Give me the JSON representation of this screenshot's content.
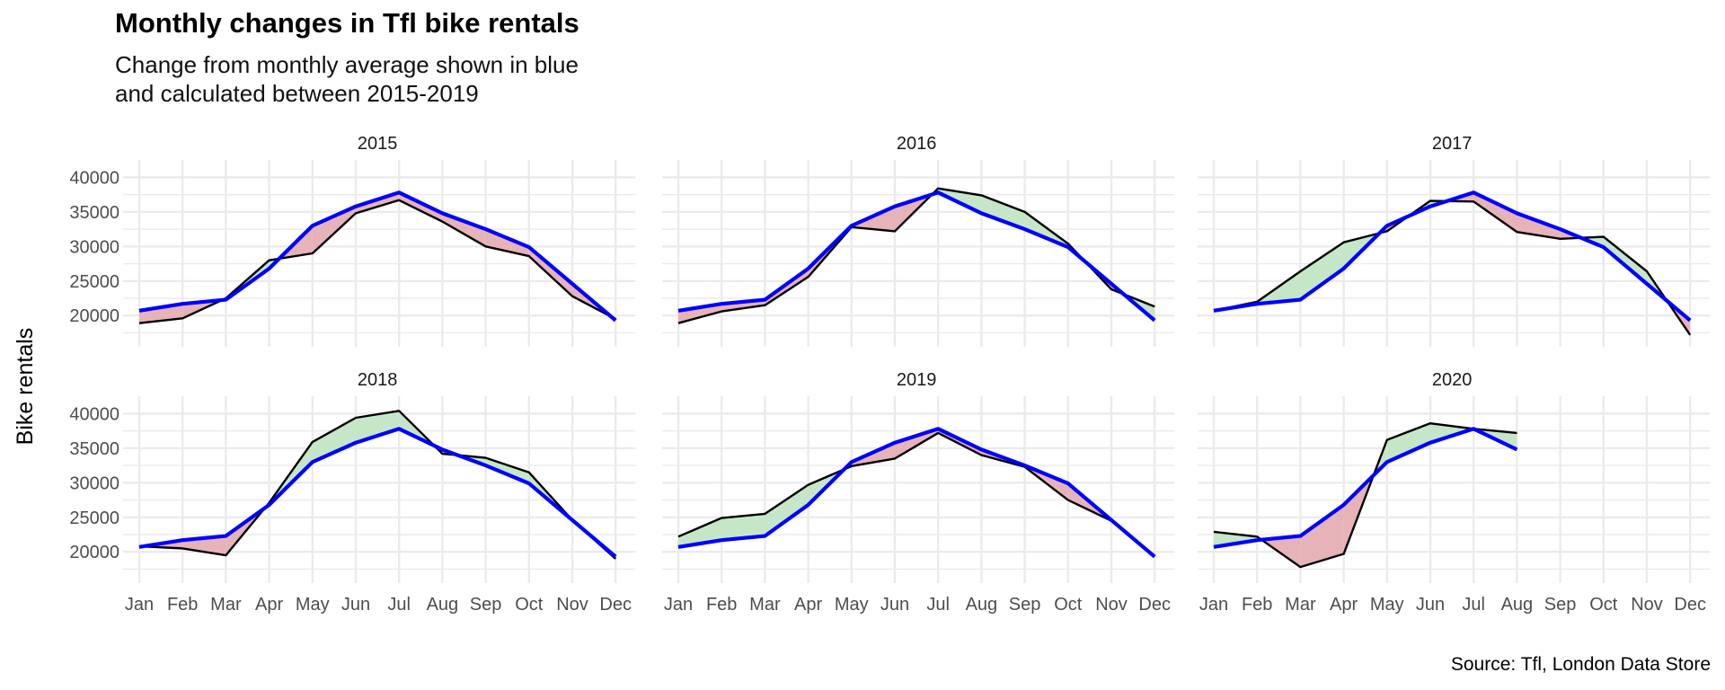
{
  "title": "Monthly changes in Tfl bike rentals",
  "subtitle_lines": [
    "Change from monthly average shown in blue",
    "and calculated between 2015-2019"
  ],
  "caption": "Source: Tfl, London Data Store",
  "colors": {
    "actual_line": "#000000",
    "average_line": "#0000ff",
    "above_average_fill": "#c6e6c8",
    "below_average_fill": "#e6b3b8",
    "grid": "#ebebeb"
  },
  "chart_data": {
    "type": "area",
    "facet_by": "year",
    "facet_layout": "3 columns x 2 rows",
    "months": [
      "Jan",
      "Feb",
      "Mar",
      "Apr",
      "May",
      "Jun",
      "Jul",
      "Aug",
      "Sep",
      "Oct",
      "Nov",
      "Dec"
    ],
    "ylabel": "Bike rentals",
    "xlabel": "",
    "y_ticks": [
      20000,
      25000,
      30000,
      35000,
      40000
    ],
    "ylim": [
      16000,
      42000
    ],
    "grid": true,
    "legend": "none",
    "average_2015_2019": [
      20700,
      21700,
      22300,
      26800,
      33000,
      35800,
      37800,
      34800,
      32500,
      29900,
      24600,
      19300
    ],
    "panels": [
      {
        "year": "2015",
        "values": [
          18900,
          19600,
          22500,
          28000,
          29000,
          34800,
          36700,
          33600,
          30000,
          28600,
          22800,
          19500
        ]
      },
      {
        "year": "2016",
        "values": [
          18900,
          20600,
          21500,
          25600,
          32800,
          32200,
          38400,
          37400,
          35000,
          30400,
          23800,
          21300
        ]
      },
      {
        "year": "2017",
        "values": [
          20700,
          22000,
          26400,
          30600,
          32200,
          36600,
          36500,
          32100,
          31100,
          31400,
          26400,
          17200
        ]
      },
      {
        "year": "2018",
        "values": [
          20800,
          20500,
          19500,
          27100,
          35900,
          39400,
          40400,
          34200,
          33600,
          31500,
          24600,
          19000
        ]
      },
      {
        "year": "2019",
        "values": [
          22200,
          24900,
          25500,
          29700,
          32400,
          33500,
          37200,
          34000,
          32300,
          27500,
          24500,
          19300
        ]
      },
      {
        "year": "2020",
        "values": [
          22900,
          22200,
          17800,
          19700,
          36200,
          38600,
          37800,
          37200,
          null,
          null,
          null,
          null
        ]
      }
    ]
  }
}
